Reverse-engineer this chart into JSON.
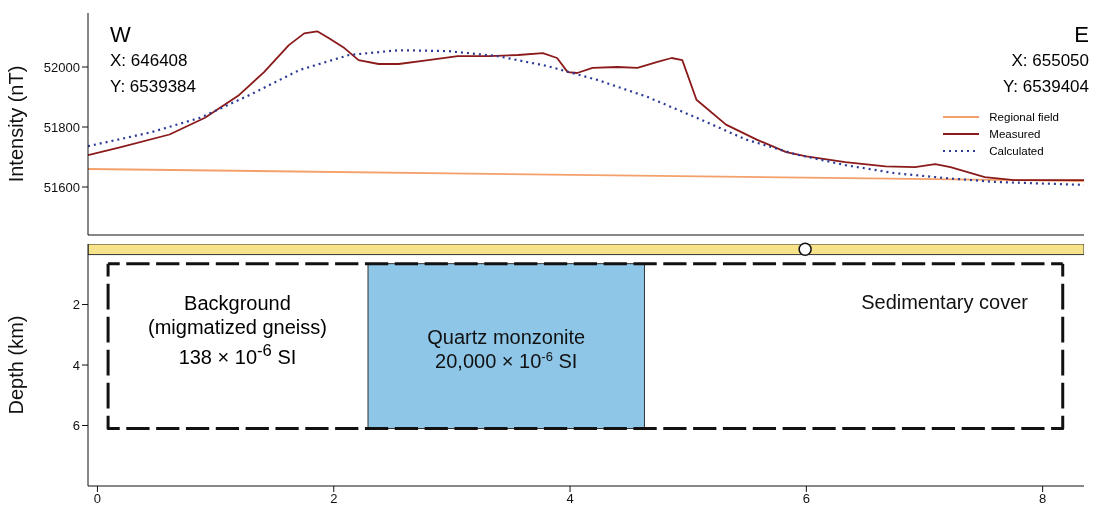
{
  "chart_data": [
    {
      "type": "line",
      "ylabel": "Intensity (nT)",
      "xlim": [
        -0.08,
        8.35
      ],
      "ylim": [
        51440,
        52180
      ],
      "yticks": [
        51600,
        51800,
        52000
      ],
      "tick_labels": "y",
      "legend": "right",
      "marker": "none",
      "annotations": [
        "W",
        "X: 646408",
        "Y: 6539384",
        "E",
        "X: 655050",
        "Y: 6539404"
      ],
      "series": [
        {
          "name": "Regional field",
          "color": "#f4a06a",
          "line_style": "solid",
          "x": [
            -0.08,
            8.35
          ],
          "values": [
            51660,
            51620
          ]
        },
        {
          "name": "Measured",
          "color": "#8b1a1a",
          "line_style": "solid",
          "x": [
            -0.08,
            0.19,
            0.61,
            0.91,
            1.2,
            1.41,
            1.62,
            1.75,
            1.86,
            1.96,
            2.09,
            2.21,
            2.38,
            2.55,
            2.8,
            3.05,
            3.31,
            3.56,
            3.77,
            3.89,
            3.98,
            4.06,
            4.19,
            4.4,
            4.57,
            4.74,
            4.86,
            4.95,
            5.07,
            5.32,
            5.58,
            5.83,
            6.0,
            6.33,
            6.67,
            6.92,
            7.09,
            7.22,
            7.51,
            7.76,
            8.35
          ],
          "values": [
            51706,
            51732,
            51775,
            51831,
            51907,
            51983,
            52073,
            52112,
            52119,
            52096,
            52063,
            52023,
            52010,
            52010,
            52023,
            52036,
            52036,
            52040,
            52046,
            52030,
            51983,
            51980,
            51997,
            52000,
            51997,
            52017,
            52030,
            52023,
            51891,
            51808,
            51758,
            51716,
            51702,
            51683,
            51669,
            51666,
            51676,
            51666,
            51633,
            51623,
            51623
          ]
        },
        {
          "name": "Calculated",
          "color": "#2b3a96",
          "line_style": "dotted",
          "x": [
            -0.08,
            0.45,
            0.87,
            1.29,
            1.71,
            2.13,
            2.55,
            2.97,
            3.39,
            3.81,
            4.23,
            4.65,
            5.07,
            5.49,
            5.91,
            6.33,
            6.75,
            7.17,
            7.59,
            8.35
          ],
          "values": [
            51736,
            51782,
            51831,
            51907,
            51990,
            52040,
            52056,
            52053,
            52036,
            52003,
            51957,
            51901,
            51831,
            51758,
            51709,
            51673,
            51646,
            51630,
            51617,
            51607
          ]
        }
      ]
    },
    {
      "type": "line",
      "ylabel": "Depth (km)",
      "xlim": [
        -0.08,
        8.35
      ],
      "ylim": [
        8,
        0
      ],
      "xticks": [
        0,
        2,
        4,
        6,
        8
      ],
      "yticks": [
        2,
        4,
        6
      ],
      "marker": "none",
      "series": [
        {
          "color": "#111111",
          "line_style": "dashed",
          "x": [
            0.09,
            0.09,
            8.17,
            8.17
          ],
          "values": [
            0.65,
            6.1,
            6.1,
            0.65
          ]
        },
        {
          "color": "#111111",
          "line_style": "dashed",
          "x": [
            0.09,
            8.17
          ],
          "values": [
            0.65,
            0.65
          ]
        }
      ],
      "annotations": [
        "Background\n(migmatized gneiss)\n138 × 10$^{-6}$ SI"
      ],
      "bands": [
        {
          "axis": "y",
          "from": 0,
          "to": 0.35,
          "label": "Sedimentary cover",
          "color": "#f7e48a"
        },
        {
          "axis": "x",
          "from": 2.29,
          "to": 4.63,
          "label": "Quartz monzonite\n20,000 × 10$^{-6}$ SI",
          "color": "#8ec6e8"
        }
      ]
    }
  ]
}
